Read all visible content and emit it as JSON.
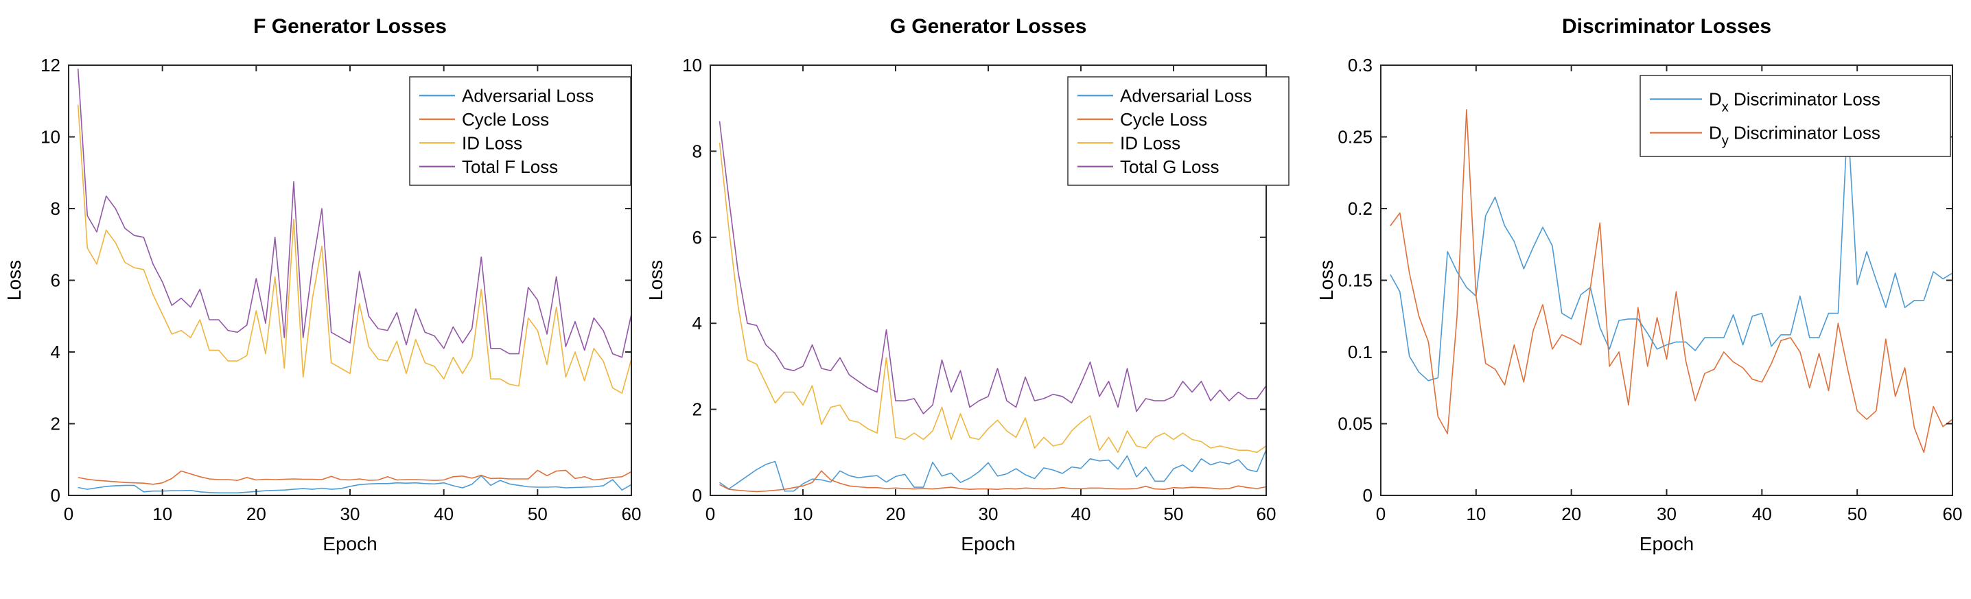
{
  "figure": {
    "background": "#ffffff",
    "axis_color": "#262626",
    "text_color": "#000000"
  },
  "chart_data": [
    {
      "type": "line",
      "title": "F Generator Losses",
      "xlabel": "Epoch",
      "ylabel": "Loss",
      "xlim": [
        0,
        60
      ],
      "ylim": [
        0,
        12
      ],
      "xticks": [
        0,
        10,
        20,
        30,
        40,
        50,
        60
      ],
      "yticks": [
        0,
        2,
        4,
        6,
        8,
        10,
        12
      ],
      "grid": false,
      "legend_position": "top-right",
      "x_range": [
        1,
        60
      ],
      "x_step": 1,
      "series": [
        {
          "name": "Adversarial Loss",
          "color": "#4C9BD5",
          "values": [
            0.22,
            0.17,
            0.21,
            0.25,
            0.27,
            0.28,
            0.28,
            0.1,
            0.12,
            0.12,
            0.13,
            0.13,
            0.14,
            0.1,
            0.08,
            0.07,
            0.07,
            0.07,
            0.09,
            0.11,
            0.13,
            0.14,
            0.15,
            0.17,
            0.19,
            0.17,
            0.2,
            0.17,
            0.19,
            0.25,
            0.3,
            0.32,
            0.33,
            0.33,
            0.35,
            0.34,
            0.35,
            0.33,
            0.32,
            0.35,
            0.27,
            0.21,
            0.31,
            0.55,
            0.28,
            0.42,
            0.32,
            0.28,
            0.24,
            0.23,
            0.23,
            0.24,
            0.21,
            0.22,
            0.23,
            0.24,
            0.27,
            0.44,
            0.15,
            0.3
          ]
        },
        {
          "name": "Cycle Loss",
          "color": "#E0703A",
          "values": [
            0.5,
            0.45,
            0.42,
            0.4,
            0.38,
            0.36,
            0.35,
            0.34,
            0.31,
            0.35,
            0.47,
            0.68,
            0.6,
            0.52,
            0.46,
            0.44,
            0.44,
            0.42,
            0.5,
            0.43,
            0.45,
            0.44,
            0.45,
            0.46,
            0.45,
            0.45,
            0.44,
            0.53,
            0.44,
            0.43,
            0.46,
            0.42,
            0.43,
            0.52,
            0.43,
            0.44,
            0.44,
            0.43,
            0.42,
            0.43,
            0.52,
            0.54,
            0.48,
            0.56,
            0.47,
            0.48,
            0.46,
            0.46,
            0.46,
            0.7,
            0.55,
            0.68,
            0.7,
            0.47,
            0.52,
            0.43,
            0.46,
            0.5,
            0.52,
            0.66
          ]
        },
        {
          "name": "ID Loss",
          "color": "#EFB63F",
          "values": [
            10.9,
            6.9,
            6.45,
            7.4,
            7.05,
            6.5,
            6.35,
            6.3,
            5.6,
            5.05,
            4.5,
            4.6,
            4.4,
            4.9,
            4.05,
            4.05,
            3.75,
            3.75,
            3.9,
            5.15,
            3.95,
            6.1,
            3.55,
            7.7,
            3.3,
            5.5,
            6.95,
            3.7,
            3.55,
            3.4,
            5.35,
            4.15,
            3.8,
            3.75,
            4.3,
            3.4,
            4.35,
            3.7,
            3.6,
            3.25,
            3.85,
            3.4,
            3.85,
            5.75,
            3.25,
            3.25,
            3.1,
            3.05,
            4.95,
            4.6,
            3.65,
            5.25,
            3.3,
            4.0,
            3.2,
            4.1,
            3.75,
            3.0,
            2.85,
            3.8
          ]
        },
        {
          "name": "Total F Loss",
          "color": "#9457A8",
          "values": [
            11.9,
            7.8,
            7.35,
            8.35,
            8.0,
            7.45,
            7.25,
            7.2,
            6.45,
            5.95,
            5.3,
            5.5,
            5.25,
            5.75,
            4.9,
            4.9,
            4.6,
            4.55,
            4.75,
            6.05,
            4.8,
            7.2,
            4.4,
            8.75,
            4.4,
            6.4,
            8.0,
            4.55,
            4.4,
            4.25,
            6.25,
            5.0,
            4.65,
            4.6,
            5.1,
            4.2,
            5.2,
            4.55,
            4.45,
            4.1,
            4.7,
            4.25,
            4.65,
            6.65,
            4.1,
            4.1,
            3.95,
            3.95,
            5.8,
            5.45,
            4.5,
            6.1,
            4.15,
            4.85,
            4.05,
            4.95,
            4.6,
            3.95,
            3.85,
            5.05
          ]
        }
      ]
    },
    {
      "type": "line",
      "title": "G Generator Losses",
      "xlabel": "Epoch",
      "ylabel": "Loss",
      "xlim": [
        0,
        60
      ],
      "ylim": [
        0,
        10
      ],
      "xticks": [
        0,
        10,
        20,
        30,
        40,
        50,
        60
      ],
      "yticks": [
        0,
        2,
        4,
        6,
        8,
        10
      ],
      "grid": false,
      "legend_position": "top-right",
      "x_range": [
        1,
        60
      ],
      "x_step": 1,
      "series": [
        {
          "name": "Adversarial Loss",
          "color": "#4C9BD5",
          "values": [
            0.3,
            0.15,
            0.3,
            0.45,
            0.6,
            0.72,
            0.79,
            0.1,
            0.1,
            0.27,
            0.38,
            0.36,
            0.31,
            0.57,
            0.46,
            0.41,
            0.44,
            0.46,
            0.31,
            0.44,
            0.49,
            0.19,
            0.19,
            0.77,
            0.45,
            0.52,
            0.3,
            0.4,
            0.55,
            0.76,
            0.45,
            0.5,
            0.62,
            0.48,
            0.39,
            0.64,
            0.59,
            0.51,
            0.66,
            0.63,
            0.85,
            0.8,
            0.82,
            0.61,
            0.92,
            0.43,
            0.66,
            0.33,
            0.33,
            0.62,
            0.71,
            0.55,
            0.85,
            0.71,
            0.78,
            0.73,
            0.83,
            0.6,
            0.55,
            1.06
          ]
        },
        {
          "name": "Cycle Loss",
          "color": "#E0703A",
          "values": [
            0.25,
            0.14,
            0.12,
            0.1,
            0.09,
            0.1,
            0.12,
            0.14,
            0.18,
            0.22,
            0.3,
            0.57,
            0.36,
            0.28,
            0.22,
            0.2,
            0.18,
            0.18,
            0.16,
            0.17,
            0.16,
            0.15,
            0.16,
            0.15,
            0.17,
            0.19,
            0.16,
            0.14,
            0.15,
            0.15,
            0.14,
            0.16,
            0.15,
            0.17,
            0.16,
            0.15,
            0.16,
            0.18,
            0.16,
            0.16,
            0.17,
            0.17,
            0.16,
            0.15,
            0.15,
            0.16,
            0.21,
            0.15,
            0.14,
            0.18,
            0.17,
            0.19,
            0.18,
            0.17,
            0.15,
            0.16,
            0.22,
            0.18,
            0.16,
            0.2
          ]
        },
        {
          "name": "ID Loss",
          "color": "#EFB63F",
          "values": [
            8.2,
            6.2,
            4.4,
            3.15,
            3.05,
            2.6,
            2.15,
            2.4,
            2.4,
            2.1,
            2.55,
            1.65,
            2.05,
            2.1,
            1.75,
            1.7,
            1.55,
            1.45,
            3.2,
            1.35,
            1.3,
            1.45,
            1.3,
            1.5,
            2.05,
            1.3,
            1.9,
            1.35,
            1.3,
            1.55,
            1.75,
            1.5,
            1.35,
            1.8,
            1.1,
            1.35,
            1.15,
            1.2,
            1.5,
            1.7,
            1.85,
            1.05,
            1.35,
            1.0,
            1.5,
            1.15,
            1.1,
            1.35,
            1.45,
            1.3,
            1.45,
            1.3,
            1.25,
            1.1,
            1.15,
            1.1,
            1.05,
            1.05,
            1.0,
            1.15
          ]
        },
        {
          "name": "Total G Loss",
          "color": "#9457A8",
          "values": [
            8.7,
            6.9,
            5.2,
            4.0,
            3.95,
            3.5,
            3.3,
            2.95,
            2.9,
            3.0,
            3.5,
            2.95,
            2.9,
            3.2,
            2.8,
            2.65,
            2.5,
            2.4,
            3.85,
            2.2,
            2.2,
            2.25,
            1.9,
            2.1,
            3.15,
            2.4,
            2.9,
            2.05,
            2.2,
            2.3,
            2.95,
            2.2,
            2.05,
            2.75,
            2.2,
            2.25,
            2.35,
            2.3,
            2.15,
            2.6,
            3.1,
            2.3,
            2.65,
            2.05,
            2.95,
            1.95,
            2.25,
            2.2,
            2.2,
            2.3,
            2.65,
            2.4,
            2.65,
            2.2,
            2.45,
            2.2,
            2.4,
            2.25,
            2.25,
            2.55
          ]
        }
      ]
    },
    {
      "type": "line",
      "title": "Discriminator Losses",
      "xlabel": "Epoch",
      "ylabel": "Loss",
      "xlim": [
        0,
        60
      ],
      "ylim": [
        0,
        0.3
      ],
      "xticks": [
        0,
        10,
        20,
        30,
        40,
        50,
        60
      ],
      "yticks": [
        0,
        0.05,
        0.1,
        0.15,
        0.2,
        0.25,
        0.3
      ],
      "grid": false,
      "legend_position": "top-right",
      "x_range": [
        1,
        60
      ],
      "x_step": 1,
      "series": [
        {
          "name": "D_x Discriminator Loss",
          "color": "#4C9BD5",
          "values": [
            0.154,
            0.142,
            0.097,
            0.086,
            0.08,
            0.082,
            0.17,
            0.156,
            0.145,
            0.139,
            0.195,
            0.208,
            0.188,
            0.177,
            0.158,
            0.173,
            0.187,
            0.174,
            0.127,
            0.123,
            0.14,
            0.145,
            0.117,
            0.102,
            0.122,
            0.123,
            0.123,
            0.113,
            0.102,
            0.105,
            0.107,
            0.107,
            0.101,
            0.11,
            0.11,
            0.11,
            0.126,
            0.105,
            0.125,
            0.127,
            0.104,
            0.112,
            0.112,
            0.139,
            0.11,
            0.11,
            0.127,
            0.127,
            0.263,
            0.147,
            0.17,
            0.15,
            0.131,
            0.155,
            0.131,
            0.136,
            0.136,
            0.156,
            0.151,
            0.155
          ]
        },
        {
          "name": "D_y Discriminator Loss",
          "color": "#E0703A",
          "values": [
            0.188,
            0.197,
            0.155,
            0.125,
            0.107,
            0.055,
            0.043,
            0.125,
            0.269,
            0.139,
            0.092,
            0.088,
            0.077,
            0.105,
            0.079,
            0.115,
            0.133,
            0.102,
            0.112,
            0.109,
            0.105,
            0.145,
            0.19,
            0.09,
            0.1,
            0.063,
            0.131,
            0.09,
            0.124,
            0.095,
            0.142,
            0.094,
            0.066,
            0.085,
            0.088,
            0.1,
            0.093,
            0.089,
            0.081,
            0.079,
            0.092,
            0.108,
            0.11,
            0.1,
            0.075,
            0.099,
            0.073,
            0.12,
            0.088,
            0.059,
            0.053,
            0.059,
            0.109,
            0.069,
            0.089,
            0.047,
            0.03,
            0.062,
            0.048,
            0.053
          ]
        }
      ]
    }
  ]
}
